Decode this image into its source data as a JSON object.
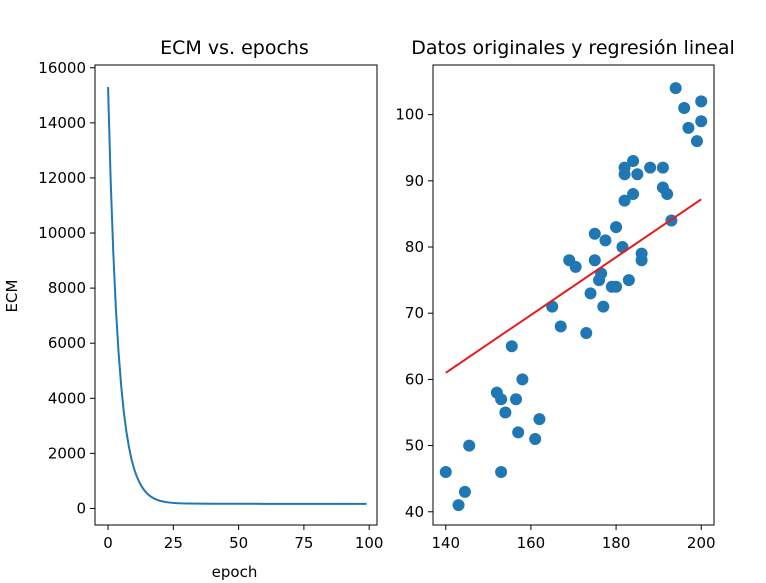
{
  "chart_data": [
    {
      "type": "line",
      "title": "ECM vs. epochs",
      "xlabel": "epoch",
      "ylabel": "ECM",
      "xlim": [
        -5,
        103
      ],
      "ylim": [
        -600,
        16100
      ],
      "xticks": [
        0,
        25,
        50,
        75,
        100
      ],
      "yticks": [
        0,
        2000,
        4000,
        6000,
        8000,
        10000,
        12000,
        14000,
        16000
      ],
      "grid": false,
      "colors": {
        "line": "#1f77b4"
      },
      "series": [
        {
          "x": [
            0,
            1,
            2,
            3,
            4,
            5,
            6,
            7,
            8,
            9,
            10,
            11,
            12,
            13,
            14,
            15,
            16,
            17,
            18,
            19,
            20,
            22,
            24,
            26,
            28,
            30,
            35,
            40,
            45,
            50,
            60,
            70,
            80,
            90,
            99
          ],
          "y": [
            15300,
            11900,
            9300,
            7250,
            5700,
            4480,
            3530,
            2800,
            2230,
            1780,
            1430,
            1160,
            950,
            780,
            645,
            540,
            460,
            395,
            345,
            305,
            275,
            235,
            210,
            195,
            185,
            180,
            175,
            172,
            170,
            170,
            169,
            168,
            168,
            168,
            168
          ]
        }
      ]
    },
    {
      "type": "scatter",
      "title": "Datos originales y regresión lineal",
      "xlabel": "",
      "ylabel": "",
      "xlim": [
        137,
        203
      ],
      "ylim": [
        38,
        107.5
      ],
      "xticks": [
        140,
        160,
        180,
        200
      ],
      "yticks": [
        40,
        50,
        60,
        70,
        80,
        90,
        100
      ],
      "grid": false,
      "colors": {
        "points": "#1f77b4",
        "regression": "#e41a1c"
      },
      "points": [
        [
          140,
          46
        ],
        [
          143,
          41
        ],
        [
          144.5,
          43
        ],
        [
          145.5,
          50
        ],
        [
          152,
          58
        ],
        [
          153,
          57
        ],
        [
          153,
          46
        ],
        [
          154,
          55
        ],
        [
          155.5,
          65
        ],
        [
          156.5,
          57
        ],
        [
          157,
          52
        ],
        [
          158,
          60
        ],
        [
          161,
          51
        ],
        [
          162,
          54
        ],
        [
          165,
          71
        ],
        [
          167,
          68
        ],
        [
          169,
          78
        ],
        [
          170.5,
          77
        ],
        [
          173,
          67
        ],
        [
          174,
          73
        ],
        [
          175,
          82
        ],
        [
          175,
          78
        ],
        [
          176,
          75
        ],
        [
          176.5,
          76
        ],
        [
          177,
          71
        ],
        [
          177.5,
          81
        ],
        [
          179,
          74
        ],
        [
          180,
          74
        ],
        [
          180,
          83
        ],
        [
          181.5,
          80
        ],
        [
          182,
          92
        ],
        [
          182,
          91
        ],
        [
          182,
          87
        ],
        [
          183,
          75
        ],
        [
          184,
          93
        ],
        [
          184,
          88
        ],
        [
          185,
          91
        ],
        [
          186,
          79
        ],
        [
          186,
          78
        ],
        [
          188,
          92
        ],
        [
          191,
          92
        ],
        [
          191,
          89
        ],
        [
          192,
          88
        ],
        [
          193,
          84
        ],
        [
          194,
          104
        ],
        [
          196,
          101
        ],
        [
          197,
          98
        ],
        [
          199,
          96
        ],
        [
          200,
          102
        ],
        [
          200,
          99
        ]
      ],
      "regression": {
        "x": [
          140,
          200
        ],
        "y": [
          61,
          87.2
        ]
      }
    }
  ]
}
